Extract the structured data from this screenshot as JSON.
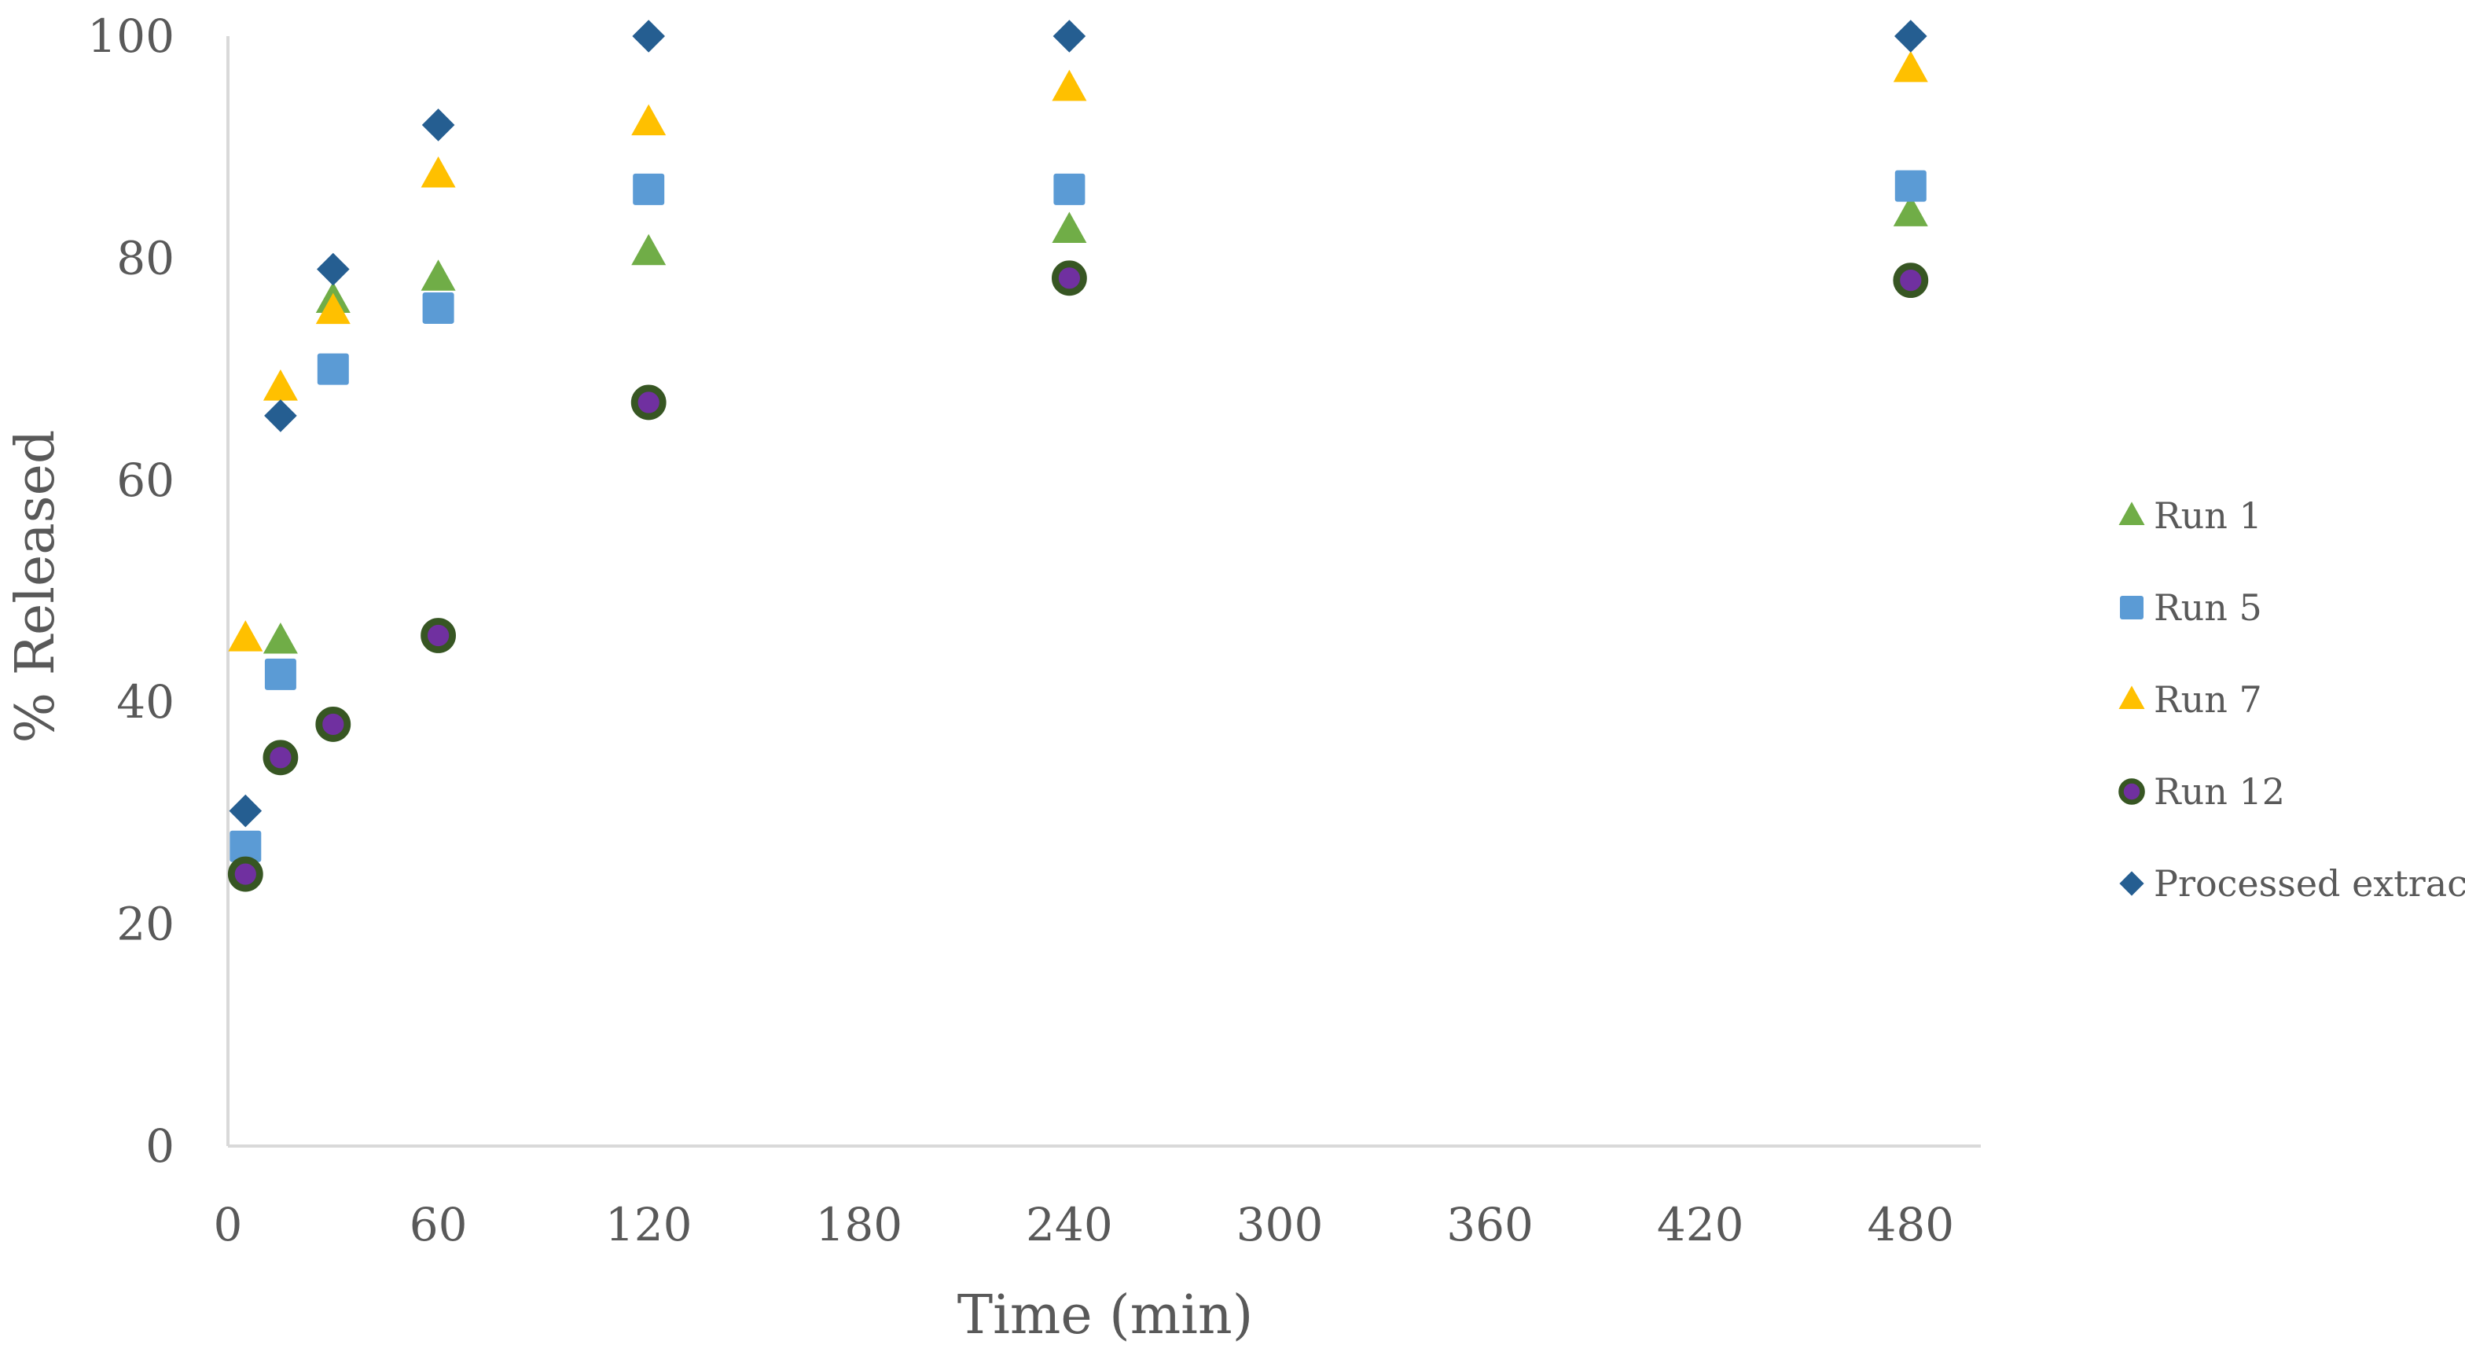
{
  "chart_data": {
    "type": "scatter",
    "title": "",
    "xlabel": "Time (min)",
    "ylabel": "% Released",
    "xlim": [
      0,
      500
    ],
    "ylim": [
      0,
      100
    ],
    "x_ticks": [
      0,
      60,
      120,
      180,
      240,
      300,
      360,
      420,
      480
    ],
    "y_ticks": [
      0,
      20,
      40,
      60,
      80,
      100
    ],
    "x_tick_labels": [
      "0",
      "60",
      "120",
      "180",
      "240",
      "300",
      "360",
      "420",
      "480"
    ],
    "y_tick_labels": [
      "0",
      "20",
      "40",
      "60",
      "80",
      "100"
    ],
    "grid": false,
    "legend_position": "right",
    "series": [
      {
        "name": "Run 1",
        "marker": "triangle",
        "color": "#70AD47",
        "points": [
          [
            15,
            45.5
          ],
          [
            30,
            76.2
          ],
          [
            60,
            78.2
          ],
          [
            120,
            80.5
          ],
          [
            240,
            82.5
          ],
          [
            480,
            84
          ]
        ]
      },
      {
        "name": "Run 5",
        "marker": "square",
        "color": "#5B9BD5",
        "points": [
          [
            5,
            27
          ],
          [
            15,
            42.5
          ],
          [
            30,
            70
          ],
          [
            60,
            75.5
          ],
          [
            120,
            86.2
          ],
          [
            240,
            86.2
          ],
          [
            480,
            86.5
          ]
        ]
      },
      {
        "name": "Run 7",
        "marker": "triangle",
        "color": "#FFC000",
        "points": [
          [
            5,
            45.7
          ],
          [
            15,
            68.3
          ],
          [
            30,
            75.2
          ],
          [
            60,
            87.5
          ],
          [
            120,
            92.2
          ],
          [
            240,
            95.3
          ],
          [
            480,
            97
          ]
        ]
      },
      {
        "name": "Run 12",
        "marker": "circle",
        "color": "#7030A0",
        "edge_color": "#375623",
        "points": [
          [
            5,
            24.5
          ],
          [
            15,
            35
          ],
          [
            30,
            38
          ],
          [
            60,
            46
          ],
          [
            120,
            67
          ],
          [
            240,
            78.2
          ],
          [
            480,
            78
          ]
        ]
      },
      {
        "name": "Processed extract",
        "marker": "diamond",
        "color": "#255E91",
        "points": [
          [
            5,
            30.2
          ],
          [
            15,
            65.8
          ],
          [
            30,
            79
          ],
          [
            60,
            92
          ],
          [
            120,
            100
          ],
          [
            240,
            100
          ],
          [
            480,
            100
          ]
        ]
      }
    ]
  }
}
